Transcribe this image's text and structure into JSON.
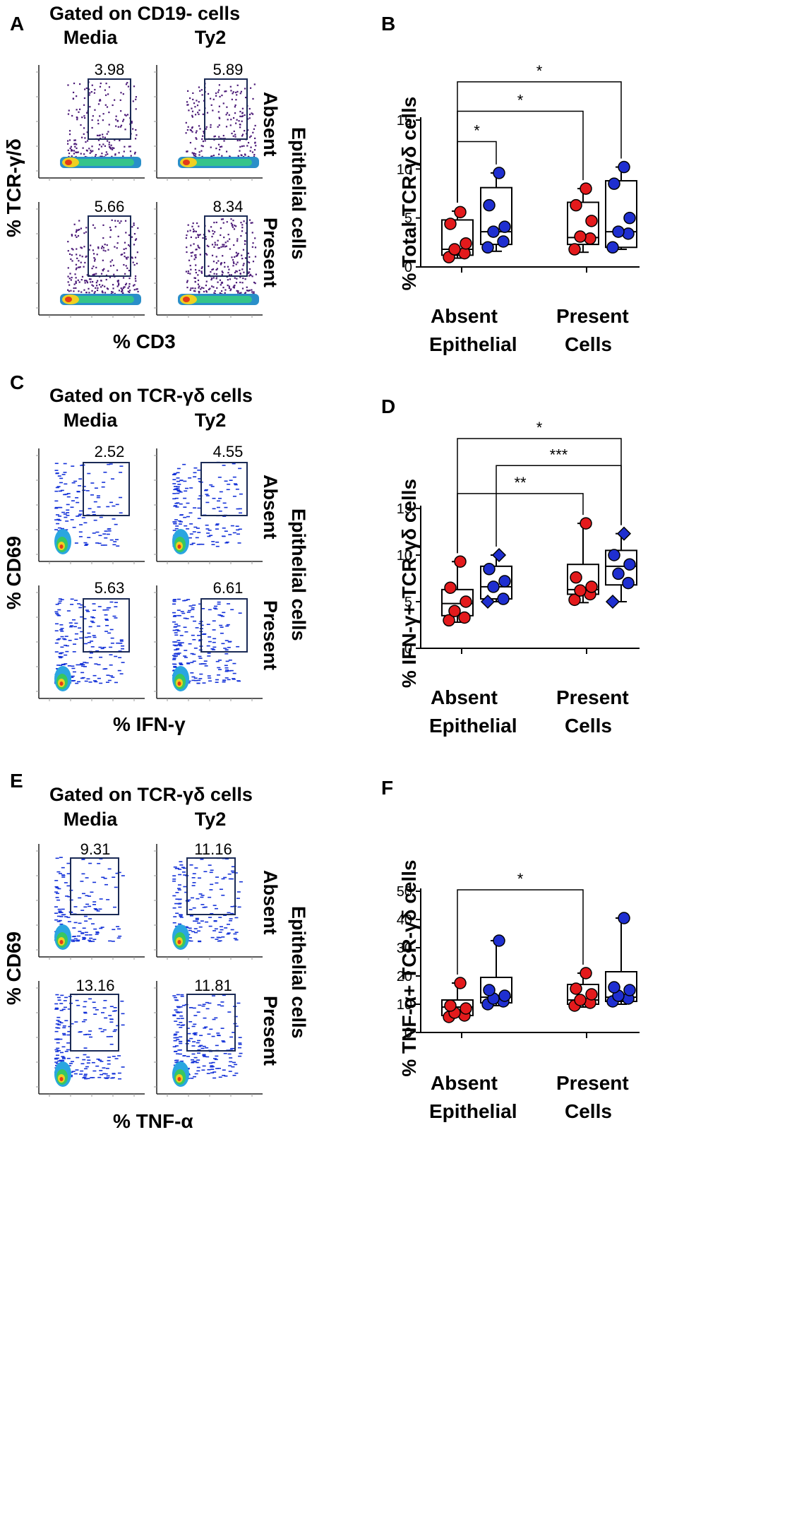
{
  "panels": {
    "A": {
      "letter": "A",
      "gated_title": "Gated on CD19- cells",
      "col_media": "Media",
      "col_ty2": "Ty2",
      "y_label": "% TCR-γ/δ",
      "x_label": "% CD3",
      "row_absent": "Absent",
      "row_present": "Present",
      "side_label": "Epithelial cells",
      "gates": [
        "3.98",
        "5.89",
        "5.66",
        "8.34"
      ]
    },
    "C": {
      "letter": "C",
      "gated_title": "Gated on TCR-γδ cells",
      "col_media": "Media",
      "col_ty2": "Ty2",
      "y_label": "% CD69",
      "x_label": "% IFN-γ",
      "row_absent": "Absent",
      "row_present": "Present",
      "side_label": "Epithelial cells",
      "gates": [
        "2.52",
        "4.55",
        "5.63",
        "6.61"
      ]
    },
    "E": {
      "letter": "E",
      "gated_title": "Gated on TCR-γδ cells",
      "col_media": "Media",
      "col_ty2": "Ty2",
      "y_label": "% CD69",
      "x_label": "% TNF-α",
      "row_absent": "Absent",
      "row_present": "Present",
      "side_label": "Epithelial cells",
      "gates": [
        "9.31",
        "11.16",
        "13.16",
        "11.81"
      ]
    }
  },
  "colors": {
    "media": "#e31a1c",
    "ty2": "#1f2fd0",
    "density_purple": "#4b1a78",
    "contour_blue": "#1432d8"
  },
  "chart_data": [
    {
      "id": "B",
      "letter": "B",
      "type": "box-scatter",
      "ylabel": "% Total TCR-γδ cells",
      "ylim": [
        0,
        15
      ],
      "yticks": [
        0,
        5,
        10,
        15
      ],
      "group_labels": [
        "Absent",
        "Present"
      ],
      "xlabel_left": "Epithelial",
      "xlabel_right": "Cells",
      "series": [
        {
          "name": "Absent Media",
          "color": "#e31a1c",
          "marker": "circle",
          "values": [
            1.0,
            1.4,
            1.8,
            2.4,
            4.4,
            5.6
          ],
          "box": {
            "min": 0.9,
            "q1": 1.2,
            "median": 1.8,
            "q3": 4.8,
            "max": 5.7
          }
        },
        {
          "name": "Absent Ty2",
          "color": "#1f2fd0",
          "marker": "circle",
          "values": [
            2.0,
            2.6,
            3.6,
            4.1,
            6.3,
            9.6
          ],
          "box": {
            "min": 1.6,
            "q1": 2.3,
            "median": 3.6,
            "q3": 8.1,
            "max": 9.6
          }
        },
        {
          "name": "Present Media",
          "color": "#e31a1c",
          "marker": "circle",
          "values": [
            1.8,
            2.9,
            3.1,
            4.7,
            6.3,
            8.0
          ],
          "box": {
            "min": 1.5,
            "q1": 2.3,
            "median": 3.0,
            "q3": 6.6,
            "max": 8.0
          }
        },
        {
          "name": "Present Ty2",
          "color": "#1f2fd0",
          "marker": "circle",
          "values": [
            2.0,
            3.4,
            3.6,
            5.0,
            8.5,
            10.2
          ],
          "box": {
            "min": 1.8,
            "q1": 2.0,
            "median": 3.6,
            "q3": 8.8,
            "max": 10.2
          }
        }
      ],
      "comparisons": [
        {
          "from": 0,
          "to": 1,
          "label": "*",
          "y": 12.8
        },
        {
          "from": 0,
          "to": 2,
          "label": "*",
          "y": 15.9
        },
        {
          "from": 0,
          "to": 3,
          "label": "*",
          "y": 18.9
        }
      ]
    },
    {
      "id": "D",
      "letter": "D",
      "type": "box-scatter",
      "ylabel": "% IFN-γ+ TCR-γδ cells",
      "ylim": [
        0,
        15
      ],
      "yticks": [
        0,
        5,
        10,
        15
      ],
      "group_labels": [
        "Absent",
        "Present"
      ],
      "xlabel_left": "Epithelial",
      "xlabel_right": "Cells",
      "series": [
        {
          "name": "Absent Media",
          "color": "#e31a1c",
          "marker": "circle",
          "values": [
            3.0,
            3.3,
            4.0,
            5.0,
            6.5,
            9.3
          ],
          "box": {
            "min": 2.8,
            "q1": 3.5,
            "median": 4.8,
            "q3": 6.3,
            "max": 9.3
          }
        },
        {
          "name": "Absent Ty2",
          "color": "#1f2fd0",
          "marker": "diamond",
          "values": [
            5.0,
            5.3,
            6.6,
            7.2,
            8.5,
            10.0
          ],
          "box": {
            "min": 5.0,
            "q1": 5.3,
            "median": 6.6,
            "q3": 8.8,
            "max": 10.0
          }
        },
        {
          "name": "Present Media",
          "color": "#e31a1c",
          "marker": "circle",
          "values": [
            5.2,
            5.8,
            6.2,
            6.6,
            7.6,
            13.4
          ],
          "box": {
            "min": 4.9,
            "q1": 5.8,
            "median": 6.3,
            "q3": 9.0,
            "max": 13.4
          }
        },
        {
          "name": "Present Ty2",
          "color": "#1f2fd0",
          "marker": "diamond",
          "values": [
            5.0,
            7.0,
            8.0,
            9.0,
            10.0,
            12.3
          ],
          "box": {
            "min": 5.0,
            "q1": 6.8,
            "median": 8.8,
            "q3": 10.5,
            "max": 12.3
          }
        }
      ],
      "comparisons": [
        {
          "from": 0,
          "to": 2,
          "label": "**",
          "y": 16.6
        },
        {
          "from": 1,
          "to": 3,
          "label": "***",
          "y": 19.6
        },
        {
          "from": 0,
          "to": 3,
          "label": "*",
          "y": 22.5
        }
      ]
    },
    {
      "id": "F",
      "letter": "F",
      "type": "box-scatter",
      "ylabel": "% TNF-α+ TCR-γδ cells",
      "ylim": [
        0,
        50
      ],
      "yticks": [
        0,
        10,
        20,
        30,
        40,
        50
      ],
      "group_labels": [
        "Absent",
        "Present"
      ],
      "xlabel_left": "Epithelial",
      "xlabel_right": "Cells",
      "series": [
        {
          "name": "Absent Media",
          "color": "#e31a1c",
          "marker": "circle",
          "values": [
            5.5,
            6.0,
            7.0,
            8.5,
            9.5,
            17.5
          ],
          "box": {
            "min": 5.5,
            "q1": 6.0,
            "median": 9.0,
            "q3": 11.5,
            "max": 17.5
          }
        },
        {
          "name": "Absent Ty2",
          "color": "#1f2fd0",
          "marker": "circle",
          "values": [
            10.0,
            11.0,
            12.0,
            13.0,
            15.0,
            32.5
          ],
          "box": {
            "min": 9.5,
            "q1": 10.5,
            "median": 12.5,
            "q3": 19.5,
            "max": 32.5
          }
        },
        {
          "name": "Present Media",
          "color": "#e31a1c",
          "marker": "circle",
          "values": [
            9.5,
            10.5,
            11.5,
            13.5,
            15.5,
            21.0
          ],
          "box": {
            "min": 9.0,
            "q1": 10.0,
            "median": 11.5,
            "q3": 17.0,
            "max": 21.0
          }
        },
        {
          "name": "Present Ty2",
          "color": "#1f2fd0",
          "marker": "circle",
          "values": [
            11.0,
            12.0,
            13.0,
            15.0,
            16.0,
            40.5
          ],
          "box": {
            "min": 10.0,
            "q1": 11.0,
            "median": 12.5,
            "q3": 21.5,
            "max": 40.5
          }
        }
      ],
      "comparisons": [
        {
          "from": 0,
          "to": 2,
          "label": "*",
          "y": 50.5
        }
      ]
    }
  ]
}
